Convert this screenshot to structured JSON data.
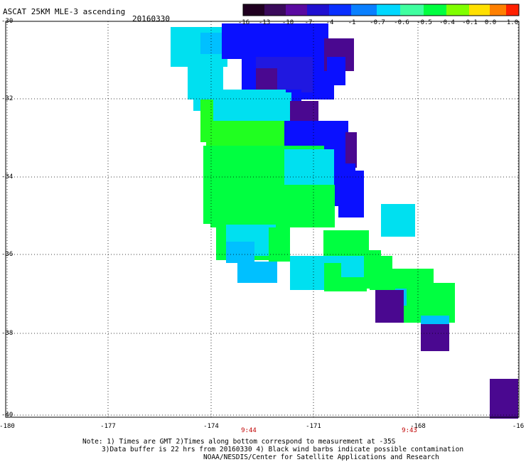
{
  "header": {
    "title": "ASCAT 25KM MLE-3 ascending",
    "date": "20160330"
  },
  "colorbar": {
    "labels": [
      "-16",
      "-13",
      "-10",
      "-7",
      "-4",
      "-1",
      "-0.7",
      "-0.6",
      "-0.5",
      "-0.4",
      "-0.1",
      "0.0",
      "1.0"
    ],
    "colors": [
      "#200020",
      "#3a0a5a",
      "#5a0aa0",
      "#2010d0",
      "#0a30ff",
      "#0a80ff",
      "#00d8ff",
      "#40ffa0",
      "#00ff40",
      "#80ff00",
      "#ffe000",
      "#ff8000",
      "#ff2000"
    ]
  },
  "axes": {
    "lat_labels": [
      "-30",
      "-32",
      "-34",
      "-36",
      "-38",
      "-40"
    ],
    "lon_labels": [
      "-180",
      "-177",
      "-174",
      "-171",
      "-168",
      "-16"
    ],
    "time_labels": [
      "9:44",
      "9:43"
    ]
  },
  "notes": {
    "line1": "Note: 1) Times are GMT 2)Times along bottom correspond to measurement at -35S",
    "line2": "3)Data buffer is 22 hrs from 20160330 4) Black wind barbs indicate possible contamination",
    "line3": "NOAA/NESDIS/Center for Satellite Applications and Research"
  },
  "map_colors": {
    "cyan": "#00e0f0",
    "light_blue": "#00c0ff",
    "blue": "#0a10ff",
    "dark_blue": "#2018e0",
    "purple": "#4a0890",
    "green": "#00ff40",
    "bright_green": "#20ff20"
  }
}
